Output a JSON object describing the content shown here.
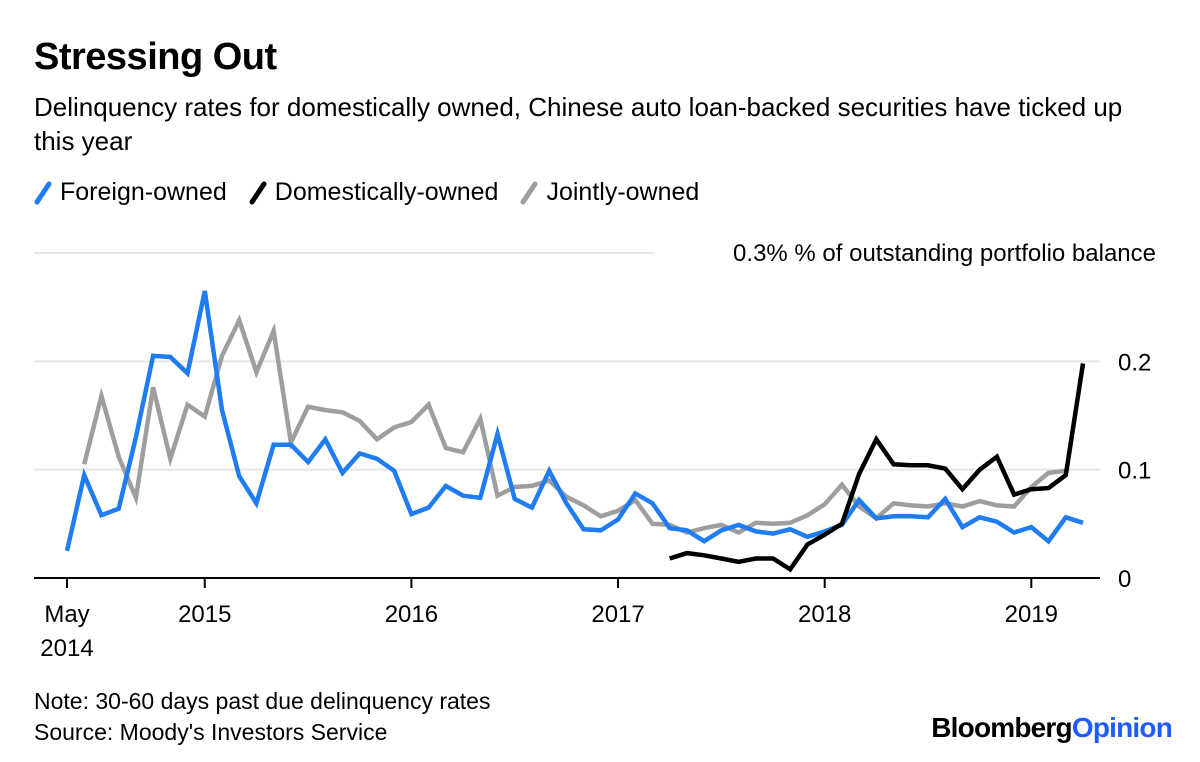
{
  "header": {
    "title": "Stressing Out",
    "subtitle": "Delinquency rates for domestically owned, Chinese auto loan-backed securities have ticked up this year"
  },
  "footer": {
    "note": "Note: 30-60 days past due delinquency rates",
    "source": "Source: Moody's Investors Service",
    "brand_part1": "Bloomberg",
    "brand_part2": "Opinion"
  },
  "colors": {
    "foreign": "#1f7cf2",
    "domestic": "#000000",
    "joint": "#9e9e9e",
    "grid": "#e6e6e6",
    "brand_accent": "#1f5cff"
  },
  "chart_data": {
    "type": "line",
    "ylabel": "% of outstanding portfolio balance",
    "ylim": [
      0,
      0.3
    ],
    "y_ticks": [
      {
        "value": 0,
        "label": "0"
      },
      {
        "value": 0.1,
        "label": "0.1"
      },
      {
        "value": 0.2,
        "label": "0.2"
      },
      {
        "value": 0.3,
        "label": "0.3%"
      }
    ],
    "x_ticks": [
      {
        "date": "2014-05",
        "label": [
          "May",
          "2014"
        ]
      },
      {
        "date": "2015-01",
        "label": [
          "2015"
        ]
      },
      {
        "date": "2016-01",
        "label": [
          "2016"
        ]
      },
      {
        "date": "2017-01",
        "label": [
          "2017"
        ]
      },
      {
        "date": "2018-01",
        "label": [
          "2018"
        ]
      },
      {
        "date": "2019-01",
        "label": [
          "2019"
        ]
      }
    ],
    "xlim": [
      "2014-05",
      "2019-04"
    ],
    "grid": true,
    "legend_position": "top-left",
    "series": [
      {
        "name": "Foreign-owned",
        "color": "#1f7cf2",
        "start": "2014-05",
        "values": [
          0.025,
          0.095,
          0.058,
          0.064,
          0.13,
          0.205,
          0.204,
          0.189,
          0.265,
          0.155,
          0.094,
          0.069,
          0.123,
          0.123,
          0.107,
          0.128,
          0.097,
          0.115,
          0.11,
          0.099,
          0.059,
          0.065,
          0.085,
          0.076,
          0.074,
          0.133,
          0.073,
          0.065,
          0.099,
          0.069,
          0.045,
          0.044,
          0.054,
          0.078,
          0.069,
          0.046,
          0.044,
          0.034,
          0.044,
          0.049,
          0.043,
          0.041,
          0.045,
          0.038,
          0.043,
          0.049,
          0.072,
          0.055,
          0.057,
          0.057,
          0.056,
          0.073,
          0.047,
          0.056,
          0.052,
          0.042,
          0.047,
          0.034,
          0.056,
          0.051
        ]
      },
      {
        "name": "Domestically-owned",
        "color": "#000000",
        "start": "2017-04",
        "values": [
          0.018,
          0.023,
          0.021,
          0.018,
          0.015,
          0.018,
          0.018,
          0.008,
          0.031,
          0.04,
          0.05,
          0.096,
          0.128,
          0.105,
          0.104,
          0.104,
          0.101,
          0.082,
          0.1,
          0.112,
          0.077,
          0.082,
          0.083,
          0.095,
          0.198
        ]
      },
      {
        "name": "Jointly-owned",
        "color": "#9e9e9e",
        "start": "2014-06",
        "values": [
          0.105,
          0.168,
          0.112,
          0.074,
          0.176,
          0.11,
          0.16,
          0.149,
          0.205,
          0.238,
          0.19,
          0.228,
          0.125,
          0.158,
          0.155,
          0.153,
          0.145,
          0.128,
          0.139,
          0.144,
          0.16,
          0.12,
          0.116,
          0.147,
          0.076,
          0.084,
          0.085,
          0.09,
          0.075,
          0.067,
          0.057,
          0.062,
          0.072,
          0.05,
          0.049,
          0.042,
          0.046,
          0.049,
          0.042,
          0.051,
          0.05,
          0.051,
          0.058,
          0.068,
          0.086,
          0.066,
          0.055,
          0.069,
          0.067,
          0.066,
          0.069,
          0.066,
          0.071,
          0.067,
          0.066,
          0.084,
          0.097,
          0.099
        ]
      }
    ]
  }
}
